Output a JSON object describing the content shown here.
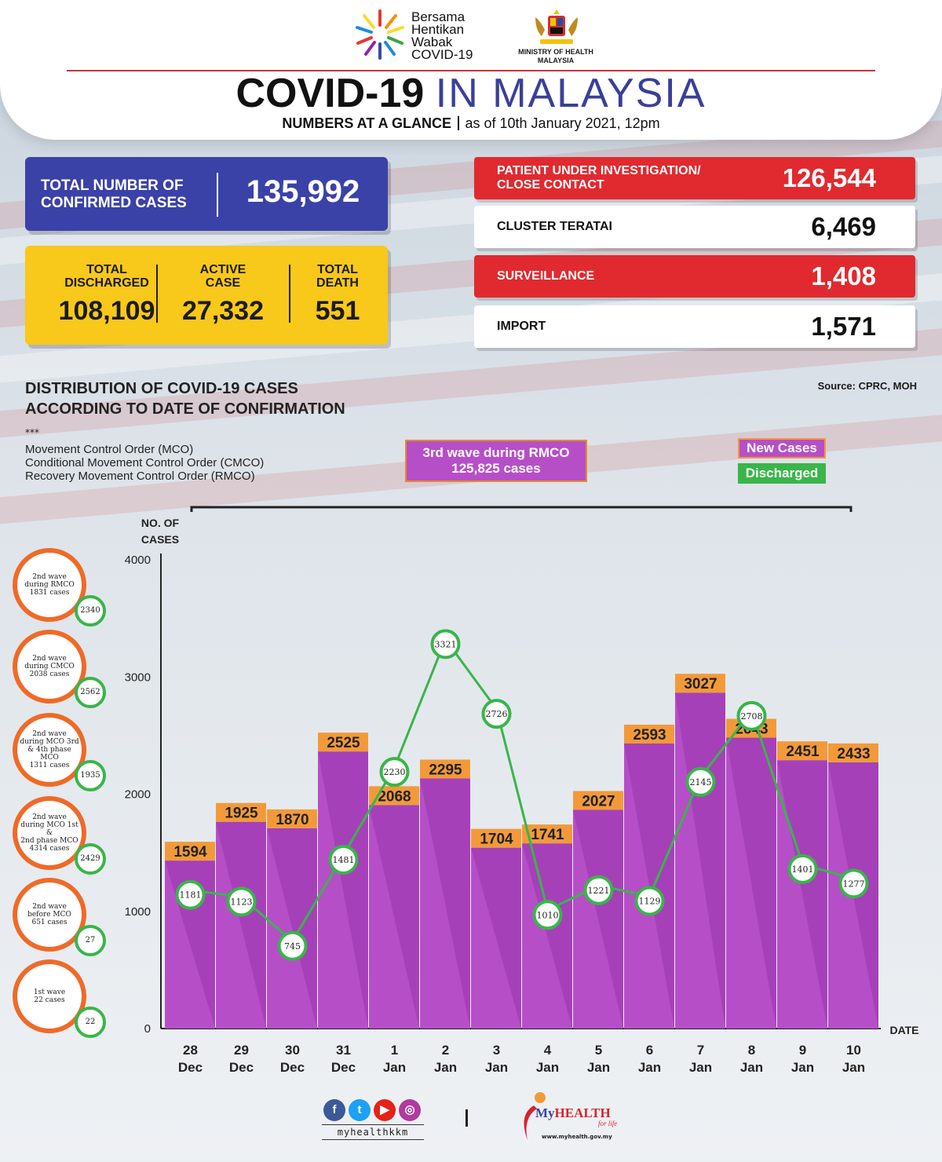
{
  "header": {
    "logo_text": [
      "Bersama",
      "Hentikan",
      "Wabak",
      "COVID-19"
    ],
    "ministry": [
      "MINISTRY OF HEALTH",
      "MALAYSIA"
    ],
    "title_bold": "COVID-19",
    "title_rest": "IN MALAYSIA",
    "subtitle_bold": "NUMBERS AT A GLANCE",
    "subtitle_rest": "as of 10th January 2021, 12pm"
  },
  "stats": {
    "total_confirmed_label": [
      "TOTAL NUMBER OF",
      "CONFIRMED CASES"
    ],
    "total_confirmed": "135,992",
    "discharged_label": [
      "TOTAL",
      "DISCHARGED"
    ],
    "discharged": "108,109",
    "active_label": [
      "ACTIVE",
      "CASE"
    ],
    "active": "27,332",
    "death_label": [
      "TOTAL",
      "DEATH"
    ],
    "death": "551"
  },
  "breakdown": [
    {
      "label": [
        "PATIENT UNDER INVESTIGATION/",
        "CLOSE CONTACT"
      ],
      "value": "126,544",
      "style": "red"
    },
    {
      "label": [
        "CLUSTER TERATAI"
      ],
      "value": "6,469",
      "style": "white"
    },
    {
      "label": [
        "SURVEILLANCE"
      ],
      "value": "1,408",
      "style": "red"
    },
    {
      "label": [
        "IMPORT"
      ],
      "value": "1,571",
      "style": "white"
    }
  ],
  "distribution": {
    "title": [
      "DISTRIBUTION OF COVID-19 CASES",
      "ACCORDING TO DATE OF CONFIRMATION"
    ],
    "source": "Source: CPRC, MOH",
    "stars": "***",
    "mco_legend": [
      "Movement Control Order (MCO)",
      "Conditional Movement Control Order (CMCO)",
      "Recovery Movement Control Order (RMCO)"
    ],
    "wave_box": [
      "3rd wave during RMCO",
      "125,825 cases"
    ],
    "legend_new": "New Cases",
    "legend_discharged": "Discharged"
  },
  "waves": [
    {
      "lines": [
        "2nd wave",
        "during RMCO",
        "1831 cases"
      ],
      "discharged": "2340"
    },
    {
      "lines": [
        "2nd wave",
        "during CMCO",
        "2038 cases"
      ],
      "discharged": "2562"
    },
    {
      "lines": [
        "2nd wave",
        "during MCO 3rd",
        "& 4th phase MCO",
        "1311 cases"
      ],
      "discharged": "1935"
    },
    {
      "lines": [
        "2nd wave",
        "during MCO 1st &",
        "2nd phase MCO",
        "4314 cases"
      ],
      "discharged": "2429"
    },
    {
      "lines": [
        "2nd wave",
        "before MCO",
        "651 cases"
      ],
      "discharged": "27"
    },
    {
      "lines": [
        "1st wave",
        "22 cases"
      ],
      "discharged": "22"
    }
  ],
  "chart_data": {
    "type": "bar",
    "ylabel": [
      "NO. OF",
      "CASES"
    ],
    "xlabel": "DATE",
    "ylim": [
      0,
      4000
    ],
    "yticks": [
      0,
      1000,
      2000,
      3000,
      4000
    ],
    "categories": [
      [
        "28",
        "Dec"
      ],
      [
        "29",
        "Dec"
      ],
      [
        "30",
        "Dec"
      ],
      [
        "31",
        "Dec"
      ],
      [
        "1",
        "Jan"
      ],
      [
        "2",
        "Jan"
      ],
      [
        "3",
        "Jan"
      ],
      [
        "4",
        "Jan"
      ],
      [
        "5",
        "Jan"
      ],
      [
        "6",
        "Jan"
      ],
      [
        "7",
        "Jan"
      ],
      [
        "8",
        "Jan"
      ],
      [
        "9",
        "Jan"
      ],
      [
        "10",
        "Jan"
      ]
    ],
    "series": [
      {
        "name": "New Cases",
        "type": "bar",
        "color": "#b64fc7",
        "values": [
          1594,
          1925,
          1870,
          2525,
          2068,
          2295,
          1704,
          1741,
          2027,
          2593,
          3027,
          2643,
          2451,
          2433
        ]
      },
      {
        "name": "Discharged",
        "type": "line",
        "color": "#39b54a",
        "values": [
          1181,
          1123,
          745,
          1481,
          2230,
          3321,
          2726,
          1010,
          1221,
          1129,
          2145,
          2708,
          1401,
          1277
        ]
      }
    ]
  },
  "footer": {
    "handle": "myhealthkkm",
    "brand_my": "My",
    "brand_health": "HEALTH",
    "forlife": "for life",
    "url": "www.myhealth.gov.my"
  }
}
